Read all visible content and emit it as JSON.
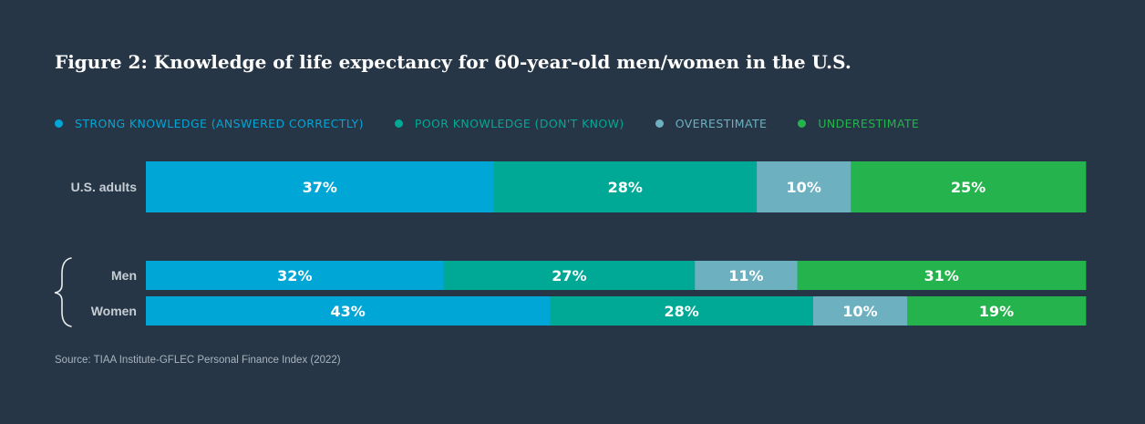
{
  "title": "Figure 2: Knowledge of life expectancy for 60-year-old men/women in the U.S.",
  "source": "Source: TIAA Institute-GFLEC Personal Finance Index (2022)",
  "chart_data": {
    "type": "bar",
    "orientation": "horizontal",
    "stacked": true,
    "percent": true,
    "categories": [
      "U.S. adults",
      "Men",
      "Women"
    ],
    "series": [
      {
        "name": "STRONG KNOWLEDGE (ANSWERED CORRECTLY)",
        "color": "#00a6d6",
        "values": [
          37,
          32,
          43
        ],
        "labels": [
          "37%",
          "32%",
          "43%"
        ]
      },
      {
        "name": "POOR KNOWLEDGE (DON'T KNOW)",
        "color": "#00a995",
        "values": [
          28,
          27,
          28
        ],
        "labels": [
          "28%",
          "27%",
          "28%"
        ]
      },
      {
        "name": "OVERESTIMATE",
        "color": "#6db0c0",
        "values": [
          10,
          11,
          10
        ],
        "labels": [
          "10%",
          "11%",
          "10%"
        ]
      },
      {
        "name": "UNDERESTIMATE",
        "color": "#25b34d",
        "values": [
          25,
          31,
          19
        ],
        "labels": [
          "25%",
          "31%",
          "19%"
        ]
      }
    ],
    "grid": false,
    "legend_position": "top-left"
  }
}
